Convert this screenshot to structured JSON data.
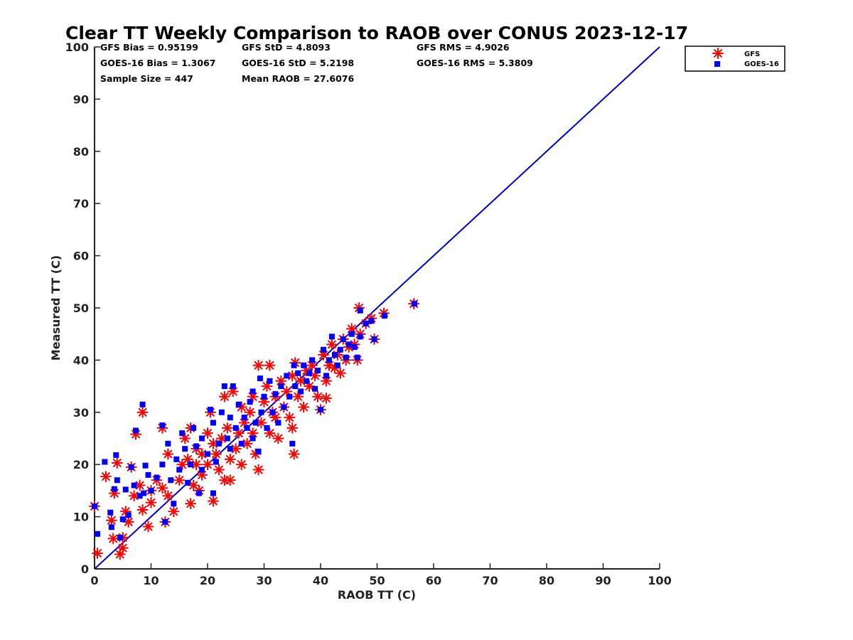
{
  "chart_data": {
    "type": "scatter",
    "title": "Clear TT Weekly Comparison to RAOB over CONUS 2023-12-17",
    "xlabel": "RAOB TT (C)",
    "ylabel": "Measured TT (C)",
    "xlim": [
      0,
      100
    ],
    "ylim": [
      0,
      100
    ],
    "xticks": [
      0,
      10,
      20,
      30,
      40,
      50,
      60,
      70,
      80,
      90,
      100
    ],
    "yticks": [
      0,
      10,
      20,
      30,
      40,
      50,
      60,
      70,
      80,
      90,
      100
    ],
    "grid": false,
    "legend_position": "top-right, outside plot",
    "stats": {
      "gfs_bias": "GFS Bias = 0.95199",
      "gfs_std": "GFS StD = 4.8093",
      "gfs_rms": "GFS RMS = 4.9026",
      "goes_bias": "GOES-16 Bias = 1.3067",
      "goes_std": "GOES-16 StD = 5.2198",
      "goes_rms": "GOES-16 RMS = 5.3809",
      "sample_size": "Sample Size = 447",
      "mean_raob": "Mean RAOB = 27.6076"
    },
    "reference_line": {
      "name": "1:1 line",
      "color": "#0000cc",
      "x": [
        0,
        100
      ],
      "y": [
        0,
        100
      ]
    },
    "series": [
      {
        "name": "GFS",
        "marker": "asterisk",
        "color": "#ff0000",
        "points": [
          [
            0.5,
            3
          ],
          [
            0.0,
            12
          ],
          [
            2,
            17.7
          ],
          [
            3,
            9.3
          ],
          [
            3.3,
            5.8
          ],
          [
            3.5,
            14.5
          ],
          [
            4,
            20.3
          ],
          [
            4.5,
            2.8
          ],
          [
            5,
            6
          ],
          [
            5,
            4
          ],
          [
            5.5,
            11
          ],
          [
            6,
            9
          ],
          [
            6.5,
            19.5
          ],
          [
            7,
            14
          ],
          [
            7.3,
            25.8
          ],
          [
            8,
            16
          ],
          [
            8.5,
            30
          ],
          [
            8.5,
            11.3
          ],
          [
            9.5,
            8.1
          ],
          [
            10,
            12.7
          ],
          [
            10,
            15
          ],
          [
            11,
            17
          ],
          [
            12,
            27
          ],
          [
            12,
            15.5
          ],
          [
            12.5,
            9
          ],
          [
            13,
            22
          ],
          [
            13,
            14
          ],
          [
            14,
            11
          ],
          [
            15,
            17
          ],
          [
            15.5,
            20
          ],
          [
            16,
            25
          ],
          [
            16.5,
            21
          ],
          [
            17,
            12.5
          ],
          [
            17,
            27
          ],
          [
            17.5,
            16
          ],
          [
            18,
            20
          ],
          [
            18,
            23
          ],
          [
            18.5,
            15
          ],
          [
            19,
            22
          ],
          [
            19,
            18
          ],
          [
            20,
            26
          ],
          [
            20,
            20
          ],
          [
            20.5,
            30
          ],
          [
            21,
            13
          ],
          [
            21,
            24
          ],
          [
            21.5,
            22
          ],
          [
            22,
            19
          ],
          [
            22.5,
            25
          ],
          [
            23,
            33
          ],
          [
            23,
            17
          ],
          [
            23.5,
            27
          ],
          [
            24,
            21
          ],
          [
            24,
            17
          ],
          [
            24.5,
            34
          ],
          [
            25,
            23
          ],
          [
            25.5,
            26
          ],
          [
            26,
            31
          ],
          [
            26,
            20
          ],
          [
            26.5,
            28
          ],
          [
            27,
            24
          ],
          [
            27.5,
            30
          ],
          [
            28,
            26
          ],
          [
            28,
            33
          ],
          [
            28.5,
            22
          ],
          [
            29,
            19
          ],
          [
            29,
            39
          ],
          [
            29.5,
            28
          ],
          [
            30,
            32
          ],
          [
            30.5,
            35
          ],
          [
            31,
            39
          ],
          [
            31,
            26
          ],
          [
            31.5,
            30
          ],
          [
            32,
            33
          ],
          [
            32,
            29
          ],
          [
            32.5,
            25
          ],
          [
            33,
            36
          ],
          [
            33.5,
            31
          ],
          [
            34,
            34
          ],
          [
            34.5,
            29
          ],
          [
            35,
            37
          ],
          [
            35,
            27
          ],
          [
            35.3,
            22
          ],
          [
            35.5,
            39.5
          ],
          [
            36,
            33
          ],
          [
            36.5,
            36
          ],
          [
            37,
            31
          ],
          [
            37.5,
            38
          ],
          [
            38,
            35
          ],
          [
            38.5,
            39
          ],
          [
            39,
            37
          ],
          [
            39.5,
            33
          ],
          [
            40,
            30.5
          ],
          [
            40.5,
            41
          ],
          [
            41,
            36
          ],
          [
            41,
            32.7
          ],
          [
            41.5,
            39
          ],
          [
            42,
            43
          ],
          [
            42.5,
            38.5
          ],
          [
            43,
            41
          ],
          [
            43.5,
            37.5
          ],
          [
            44,
            44
          ],
          [
            44.5,
            40
          ],
          [
            45,
            42.5
          ],
          [
            45.5,
            46
          ],
          [
            46,
            43
          ],
          [
            46.5,
            40
          ],
          [
            46.8,
            50
          ],
          [
            47,
            45
          ],
          [
            48,
            47
          ],
          [
            49,
            48
          ],
          [
            49.5,
            44
          ],
          [
            51.2,
            49
          ],
          [
            56.5,
            50.8
          ]
        ]
      },
      {
        "name": "GOES-16",
        "marker": "square",
        "color": "#0000ff",
        "points": [
          [
            0.0,
            12
          ],
          [
            0.5,
            6.7
          ],
          [
            1.8,
            20.5
          ],
          [
            2.8,
            10.8
          ],
          [
            3,
            8
          ],
          [
            3.5,
            15.3
          ],
          [
            3.8,
            21.8
          ],
          [
            4,
            17
          ],
          [
            4.5,
            6
          ],
          [
            5,
            9.5
          ],
          [
            5.5,
            15.2
          ],
          [
            6,
            10.3
          ],
          [
            6.5,
            19.5
          ],
          [
            7,
            16
          ],
          [
            7.3,
            26.5
          ],
          [
            8,
            14
          ],
          [
            8.5,
            31.5
          ],
          [
            8.7,
            14.5
          ],
          [
            9,
            19.8
          ],
          [
            9.5,
            18
          ],
          [
            10,
            15
          ],
          [
            11,
            17.5
          ],
          [
            12,
            20
          ],
          [
            12,
            27.5
          ],
          [
            12.5,
            9
          ],
          [
            13,
            24
          ],
          [
            13.5,
            17
          ],
          [
            14,
            12.5
          ],
          [
            14.5,
            21
          ],
          [
            15,
            19
          ],
          [
            15.5,
            26
          ],
          [
            16,
            23
          ],
          [
            16.5,
            16.5
          ],
          [
            17,
            20
          ],
          [
            17.5,
            27
          ],
          [
            18,
            23.5
          ],
          [
            18.5,
            14.5
          ],
          [
            19,
            25
          ],
          [
            19,
            19
          ],
          [
            20,
            22
          ],
          [
            20.5,
            30.5
          ],
          [
            21,
            14.5
          ],
          [
            21,
            28
          ],
          [
            21.5,
            20.5
          ],
          [
            22,
            24
          ],
          [
            22.5,
            30
          ],
          [
            23,
            35
          ],
          [
            23.5,
            25
          ],
          [
            24,
            29
          ],
          [
            24,
            23
          ],
          [
            24.5,
            35
          ],
          [
            25,
            27
          ],
          [
            25.5,
            31.5
          ],
          [
            26,
            24
          ],
          [
            26.5,
            29
          ],
          [
            27,
            27
          ],
          [
            27.5,
            32
          ],
          [
            28,
            25
          ],
          [
            28,
            34
          ],
          [
            28.5,
            28
          ],
          [
            29,
            22.5
          ],
          [
            29.3,
            36.5
          ],
          [
            29.5,
            30
          ],
          [
            30,
            33
          ],
          [
            30.5,
            27
          ],
          [
            31,
            36
          ],
          [
            31.5,
            30
          ],
          [
            32,
            33.5
          ],
          [
            32.5,
            28
          ],
          [
            33,
            35
          ],
          [
            33.5,
            31
          ],
          [
            34,
            37
          ],
          [
            34.5,
            33
          ],
          [
            35,
            24
          ],
          [
            35.3,
            39
          ],
          [
            35.5,
            35
          ],
          [
            36,
            37.5
          ],
          [
            36.5,
            34
          ],
          [
            37,
            39
          ],
          [
            37.5,
            36
          ],
          [
            38,
            37.5
          ],
          [
            38.5,
            40
          ],
          [
            39,
            34.5
          ],
          [
            39.5,
            38
          ],
          [
            40,
            30.5
          ],
          [
            40.5,
            42
          ],
          [
            41,
            37
          ],
          [
            41.5,
            40
          ],
          [
            42,
            44.5
          ],
          [
            42.5,
            41
          ],
          [
            43,
            39
          ],
          [
            43.5,
            42
          ],
          [
            44,
            44
          ],
          [
            44.5,
            40.5
          ],
          [
            45,
            43
          ],
          [
            45.5,
            45
          ],
          [
            46,
            42.5
          ],
          [
            46.5,
            40.5
          ],
          [
            47,
            49.5
          ],
          [
            47,
            44.5
          ],
          [
            48,
            47
          ],
          [
            49,
            47.5
          ],
          [
            49.5,
            44
          ],
          [
            51.3,
            48.5
          ],
          [
            56.6,
            50.8
          ]
        ]
      }
    ]
  }
}
